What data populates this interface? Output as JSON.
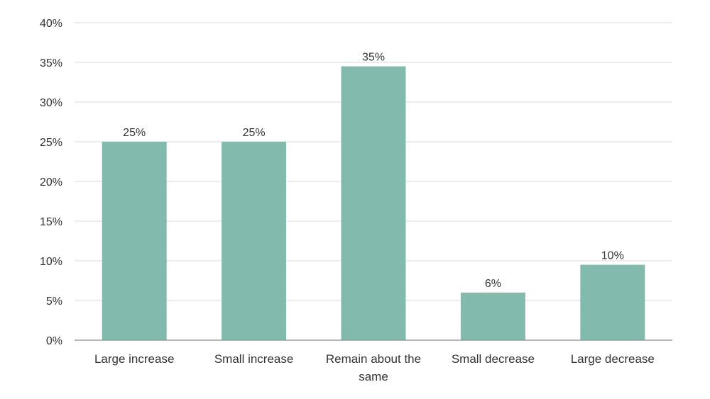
{
  "chart_data": {
    "type": "bar",
    "title": "",
    "xlabel": "",
    "ylabel": "",
    "categories": [
      [
        "Large increase"
      ],
      [
        "Small increase"
      ],
      [
        "Remain about the",
        "same"
      ],
      [
        "Small decrease"
      ],
      [
        "Large decrease"
      ]
    ],
    "values": [
      25,
      25,
      34.5,
      6,
      9.5
    ],
    "data_labels": [
      "25%",
      "25%",
      "35%",
      "6%",
      "10%"
    ],
    "ylim": [
      0,
      40
    ],
    "yticks": [
      0,
      5,
      10,
      15,
      20,
      25,
      30,
      35,
      40
    ],
    "ytick_labels": [
      "0%",
      "5%",
      "10%",
      "15%",
      "20%",
      "25%",
      "30%",
      "35%",
      "40%"
    ],
    "grid": true,
    "legend": "none",
    "colors": {
      "bar": "#82bbad",
      "grid": "#d9d9d9",
      "axis": "#8c8c8c",
      "text": "#333333"
    }
  }
}
